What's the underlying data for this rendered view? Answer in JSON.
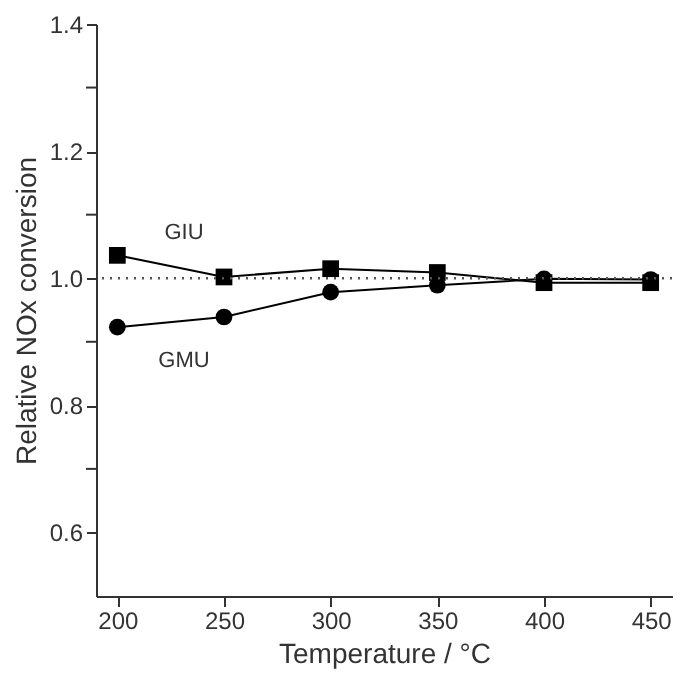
{
  "chart_data": {
    "type": "line",
    "xlabel": "Temperature / °C",
    "ylabel": "Relative NOx conversion",
    "x": [
      200,
      250,
      300,
      350,
      400,
      450
    ],
    "series": [
      {
        "name": "GIU",
        "color": "#000000",
        "marker": "square",
        "values": [
          1.036,
          1.002,
          1.015,
          1.009,
          0.993,
          0.993
        ]
      },
      {
        "name": "GMU",
        "color": "#000000",
        "marker": "circle",
        "values": [
          0.923,
          0.939,
          0.978,
          0.989,
          0.999,
          0.998
        ]
      }
    ],
    "xlim": [
      190,
      460
    ],
    "xticks": [
      200,
      250,
      300,
      350,
      400,
      450
    ],
    "ylim": [
      0.5,
      1.4
    ],
    "yticks": [
      0.6,
      {
        "value": 0.7,
        "label": null
      },
      0.8,
      {
        "value": 0.9,
        "label": null
      },
      {
        "value": 1.0,
        "label": "1.0"
      },
      {
        "value": 1.1,
        "label": null
      },
      1.2,
      {
        "value": 1.3,
        "label": null
      },
      1.4
    ],
    "ref_lines": [
      {
        "axis": "y",
        "value": 1.0,
        "label": null,
        "color": "#555555",
        "line_style": "dotted"
      }
    ],
    "grid": false,
    "legend": false,
    "line_style": "solid"
  }
}
